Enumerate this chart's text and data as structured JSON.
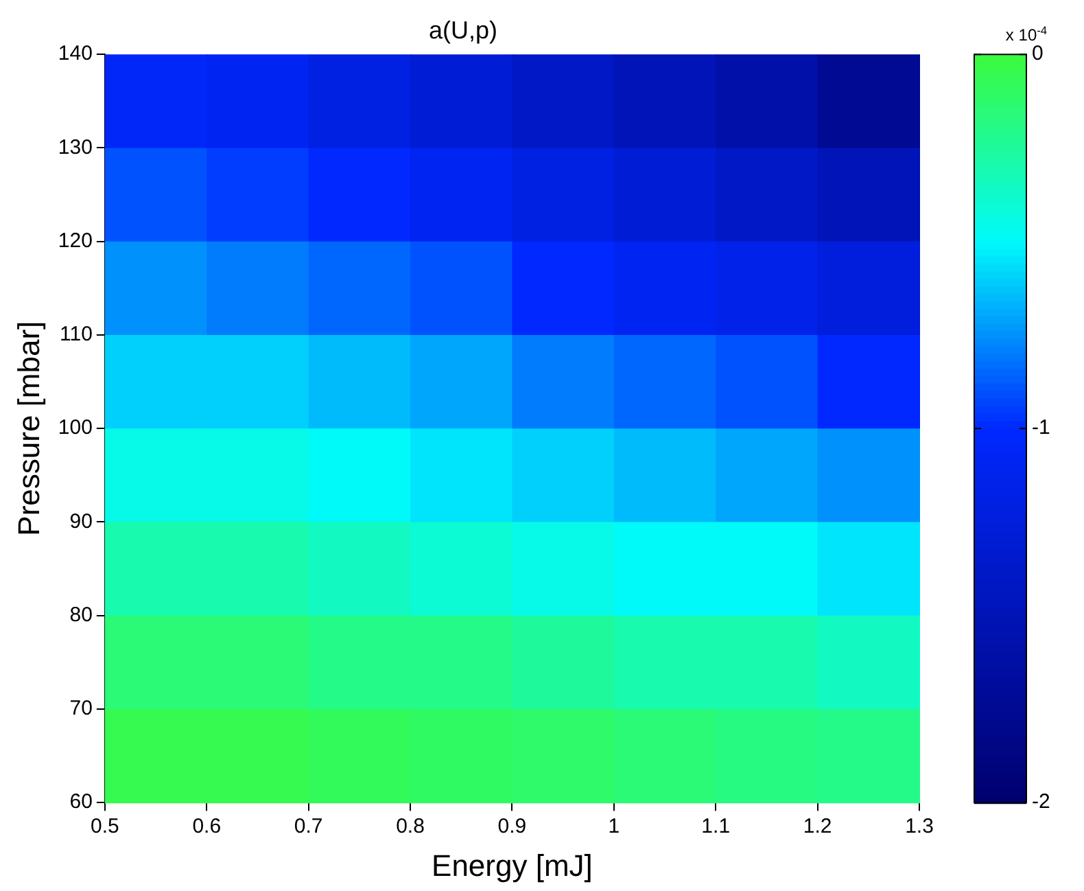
{
  "chart_data": {
    "type": "heatmap",
    "title": "a(U,p)",
    "xlabel": "Energy [mJ]",
    "ylabel": "Pressure [mbar]",
    "clabel": "x 10$^{-4}$",
    "xlim": [
      0.5,
      1.3
    ],
    "xticks": [
      0.5,
      0.6,
      0.7,
      0.8,
      0.9,
      1,
      1.1,
      1.2,
      1.3
    ],
    "ylim": [
      60,
      140
    ],
    "yticks": [
      60,
      70,
      80,
      90,
      100,
      110,
      120,
      130,
      140
    ],
    "clim": [
      -2,
      0
    ],
    "cticks": [
      0,
      -1,
      -2
    ],
    "grid": false,
    "cells": [
      [
        -1.05,
        -1.1,
        -1.2,
        -1.3,
        -1.4,
        -1.5,
        -1.6,
        -1.75
      ],
      [
        -0.9,
        -0.95,
        -1.0,
        -1.1,
        -1.2,
        -1.3,
        -1.4,
        -1.5
      ],
      [
        -0.75,
        -0.8,
        -0.85,
        -0.9,
        -1.0,
        -1.1,
        -1.15,
        -1.25
      ],
      [
        -0.6,
        -0.6,
        -0.65,
        -0.7,
        -0.8,
        -0.85,
        -0.9,
        -1.0
      ],
      [
        -0.45,
        -0.45,
        -0.5,
        -0.55,
        -0.6,
        -0.65,
        -0.7,
        -0.75
      ],
      [
        -0.3,
        -0.3,
        -0.35,
        -0.4,
        -0.45,
        -0.5,
        -0.5,
        -0.55
      ],
      [
        -0.15,
        -0.15,
        -0.2,
        -0.2,
        -0.25,
        -0.3,
        -0.3,
        -0.35
      ],
      [
        -0.05,
        -0.05,
        -0.08,
        -0.1,
        -0.12,
        -0.15,
        -0.18,
        -0.2
      ]
    ]
  }
}
